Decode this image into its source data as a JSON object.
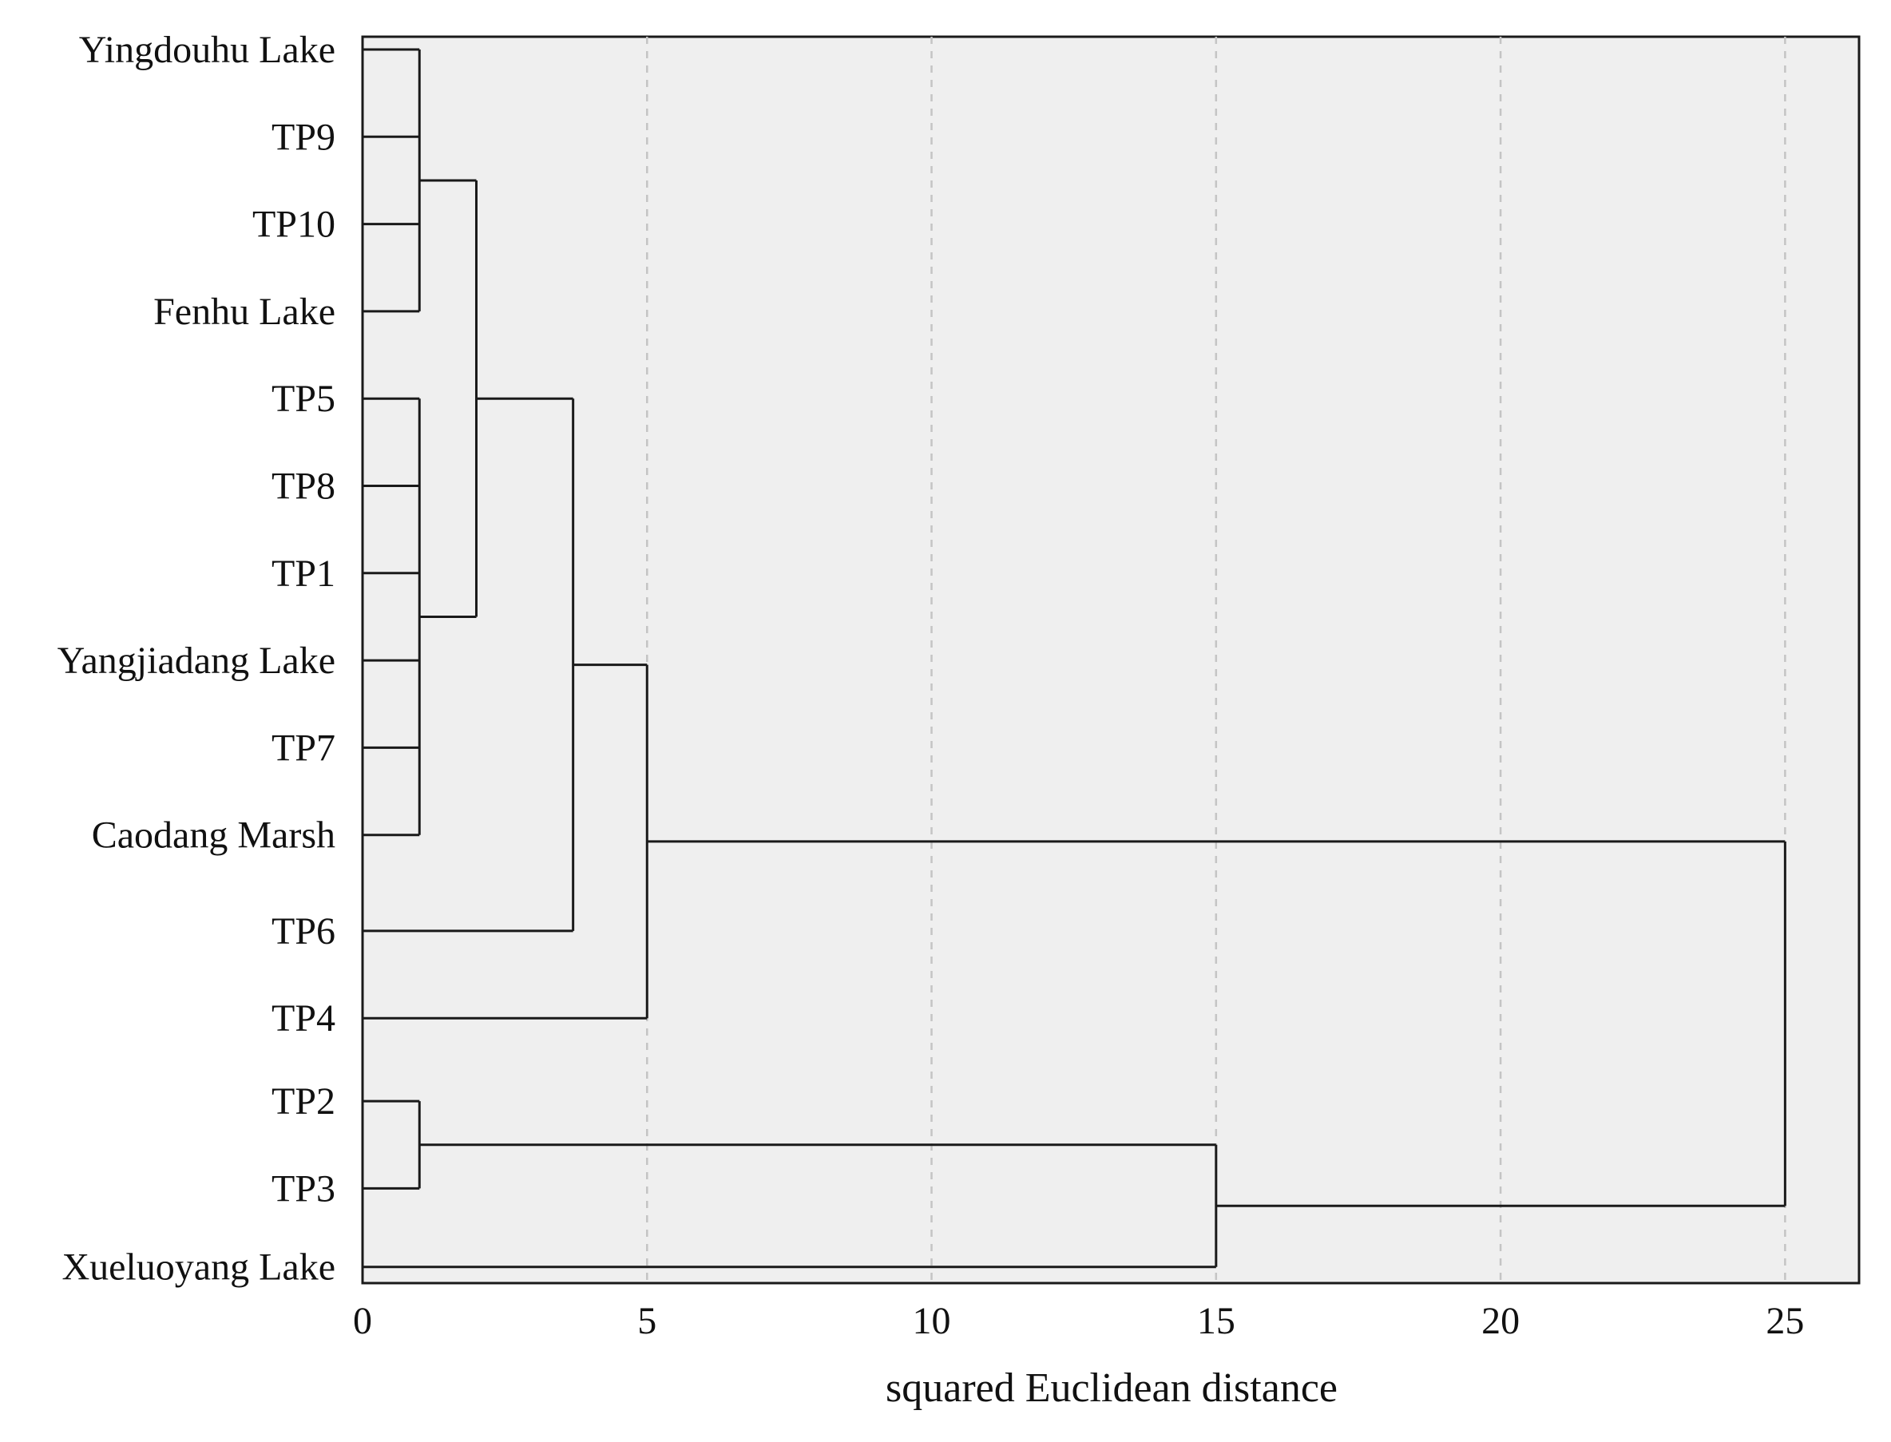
{
  "chart_data": {
    "type": "dendrogram",
    "xlabel": "squared Euclidean distance",
    "xlim": [
      0,
      26.3
    ],
    "xticks": [
      0,
      5,
      10,
      15,
      20,
      25
    ],
    "grid": "vertical-dashed",
    "leaves": [
      {
        "label": "Yingdouhu Lake",
        "row": 0
      },
      {
        "label": "TP9",
        "row": 1
      },
      {
        "label": "TP10",
        "row": 2
      },
      {
        "label": "Fenhu Lake",
        "row": 3
      },
      {
        "label": "TP5",
        "row": 4
      },
      {
        "label": "TP8",
        "row": 5
      },
      {
        "label": "TP1",
        "row": 6
      },
      {
        "label": "Yangjiadang Lake",
        "row": 7
      },
      {
        "label": "TP7",
        "row": 8
      },
      {
        "label": "Caodang Marsh",
        "row": 9
      },
      {
        "label": "TP6",
        "row": 10.1
      },
      {
        "label": "TP4",
        "row": 11.1
      },
      {
        "label": "TP2",
        "row": 12.05
      },
      {
        "label": "TP3",
        "row": 13.05
      },
      {
        "label": "Xueluoyang Lake",
        "row": 13.95
      }
    ],
    "merges": [
      {
        "id": "A",
        "height": 1.0,
        "children": [
          "Yingdouhu Lake",
          "TP9",
          "TP10",
          "Fenhu Lake"
        ]
      },
      {
        "id": "B",
        "height": 1.0,
        "children": [
          "TP5",
          "TP8",
          "TP1",
          "Yangjiadang Lake",
          "TP7",
          "Caodang Marsh"
        ]
      },
      {
        "id": "C",
        "height": 2.0,
        "children": [
          "A",
          "B"
        ]
      },
      {
        "id": "D",
        "height": 3.7,
        "children": [
          "C",
          "TP6"
        ]
      },
      {
        "id": "E",
        "height": 5.0,
        "children": [
          "D",
          "TP4"
        ]
      },
      {
        "id": "F",
        "height": 1.0,
        "children": [
          "TP2",
          "TP3"
        ]
      },
      {
        "id": "G",
        "height": 15.0,
        "children": [
          "F",
          "Xueluoyang Lake"
        ]
      },
      {
        "id": "H",
        "height": 25.0,
        "children": [
          "E",
          "G"
        ]
      }
    ]
  }
}
